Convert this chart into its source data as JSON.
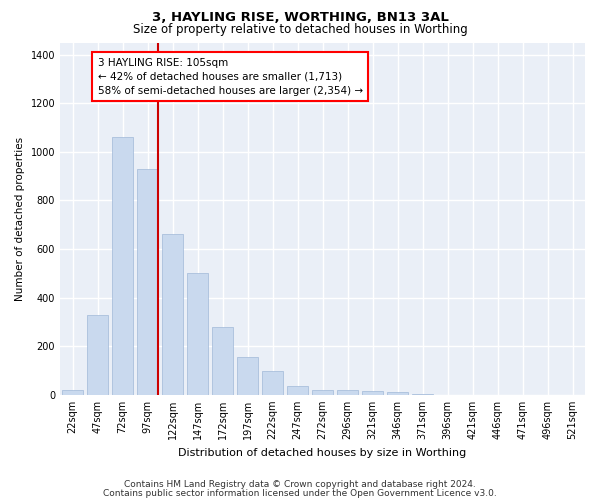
{
  "title": "3, HAYLING RISE, WORTHING, BN13 3AL",
  "subtitle": "Size of property relative to detached houses in Worthing",
  "xlabel": "Distribution of detached houses by size in Worthing",
  "ylabel": "Number of detached properties",
  "categories": [
    "22sqm",
    "47sqm",
    "72sqm",
    "97sqm",
    "122sqm",
    "147sqm",
    "172sqm",
    "197sqm",
    "222sqm",
    "247sqm",
    "272sqm",
    "296sqm",
    "321sqm",
    "346sqm",
    "371sqm",
    "396sqm",
    "421sqm",
    "446sqm",
    "471sqm",
    "496sqm",
    "521sqm"
  ],
  "values": [
    20,
    330,
    1060,
    930,
    660,
    500,
    280,
    155,
    100,
    35,
    20,
    20,
    15,
    10,
    5,
    0,
    0,
    0,
    0,
    0,
    0
  ],
  "bar_color": "#c9d9ee",
  "bar_edge_color": "#a0b8d8",
  "red_line_index": 3,
  "annotation_text_line1": "3 HAYLING RISE: 105sqm",
  "annotation_text_line2": "← 42% of detached houses are smaller (1,713)",
  "annotation_text_line3": "58% of semi-detached houses are larger (2,354) →",
  "annotation_box_color": "white",
  "annotation_box_edge_color": "red",
  "red_line_color": "#cc0000",
  "ylim": [
    0,
    1450
  ],
  "yticks": [
    0,
    200,
    400,
    600,
    800,
    1000,
    1200,
    1400
  ],
  "background_color": "#eaeff7",
  "grid_color": "white",
  "footer_line1": "Contains HM Land Registry data © Crown copyright and database right 2024.",
  "footer_line2": "Contains public sector information licensed under the Open Government Licence v3.0.",
  "title_fontsize": 9.5,
  "subtitle_fontsize": 8.5,
  "xlabel_fontsize": 8,
  "ylabel_fontsize": 7.5,
  "tick_fontsize": 7,
  "annotation_fontsize": 7.5,
  "footer_fontsize": 6.5
}
